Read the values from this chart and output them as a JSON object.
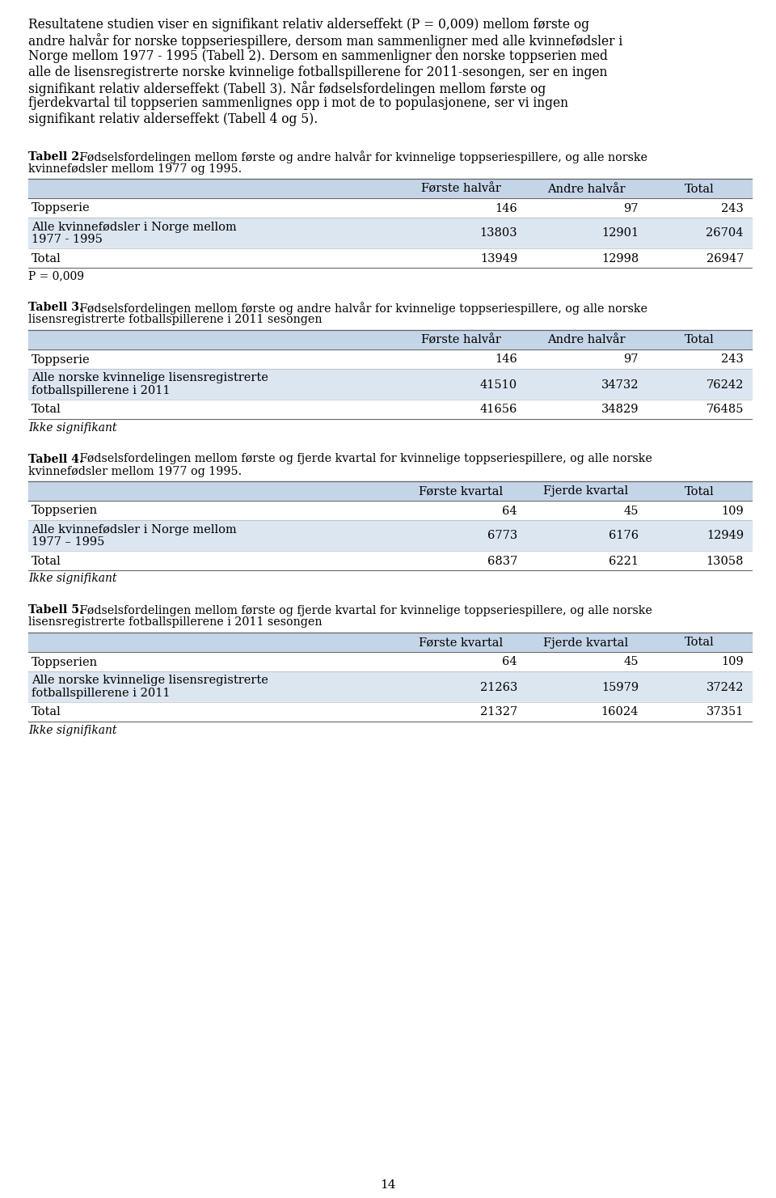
{
  "bg_color": "#ffffff",
  "text_color": "#000000",
  "table_header_bg": "#c5d5e8",
  "table_row_alt_bg": "#dce6f1",
  "table_row_white_bg": "#ffffff",
  "intro_text_lines": [
    "Resultatene studien viser en signifikant relativ alderseffekt (P = 0,009) mellom første og",
    "andre halvår for norske toppseriespillere, dersom man sammenligner med alle kvinnefødsler i",
    "Norge mellom 1977 - 1995 (Tabell 2). Dersom en sammenligner den norske toppserien med",
    "alle de lisensregistrerte norske kvinnelige fotballspillerene for 2011-sesongen, ser en ingen",
    "signifikant relativ alderseffekt (Tabell 3). Når fødselsfordelingen mellom første og",
    "fjerdekvartal til toppserien sammenlignes opp i mot de to populasjonene, ser vi ingen",
    "signifikant relativ alderseffekt (Tabell 4 og 5)."
  ],
  "page_number": "14",
  "tables": [
    {
      "title_bold": "Tabell 2.",
      "title_normal": " Fødselsfordelingen mellom første og andre halvår for kvinnelige toppseriespillere, og alle norske",
      "title_line2": "kvinnefødsler mellom 1977 og 1995.",
      "col_headers": [
        "",
        "Første halvår",
        "Andre halvår",
        "Total"
      ],
      "rows": [
        {
          "label": "Toppserie",
          "label2": "",
          "values": [
            "146",
            "97",
            "243"
          ],
          "shade": false
        },
        {
          "label": "Alle kvinnefødsler i Norge mellom",
          "label2": "1977 - 1995",
          "values": [
            "13803",
            "12901",
            "26704"
          ],
          "shade": true
        },
        {
          "label": "Total",
          "label2": "",
          "values": [
            "13949",
            "12998",
            "26947"
          ],
          "shade": false
        }
      ],
      "footer": "P = 0,009",
      "footer_italic": false
    },
    {
      "title_bold": "Tabell 3.",
      "title_normal": " Fødselsfordelingen mellom første og andre halvår for kvinnelige toppseriespillere, og alle norske",
      "title_line2": "lisensregistrerte fotballspillerene i 2011 sesongen",
      "col_headers": [
        "",
        "Første halvår",
        "Andre halvår",
        "Total"
      ],
      "rows": [
        {
          "label": "Toppserie",
          "label2": "",
          "values": [
            "146",
            "97",
            "243"
          ],
          "shade": false
        },
        {
          "label": "Alle norske kvinnelige lisensregistrerte",
          "label2": "fotballspillerene i 2011",
          "values": [
            "41510",
            "34732",
            "76242"
          ],
          "shade": true
        },
        {
          "label": "Total",
          "label2": "",
          "values": [
            "41656",
            "34829",
            "76485"
          ],
          "shade": false
        }
      ],
      "footer": "Ikke signifikant",
      "footer_italic": true
    },
    {
      "title_bold": "Tabell 4.",
      "title_normal": " Fødselsfordelingen mellom første og fjerde kvartal for kvinnelige toppseriespillere, og alle norske",
      "title_line2": "kvinnefødsler mellom 1977 og 1995.",
      "col_headers": [
        "",
        "Første kvartal",
        "Fjerde kvartal",
        "Total"
      ],
      "rows": [
        {
          "label": "Toppserien",
          "label2": "",
          "values": [
            "64",
            "45",
            "109"
          ],
          "shade": false
        },
        {
          "label": "Alle kvinnefødsler i Norge mellom",
          "label2": "1977 – 1995",
          "values": [
            "6773",
            "6176",
            "12949"
          ],
          "shade": true
        },
        {
          "label": "Total",
          "label2": "",
          "values": [
            "6837",
            "6221",
            "13058"
          ],
          "shade": false
        }
      ],
      "footer": "Ikke signifikant",
      "footer_italic": true
    },
    {
      "title_bold": "Tabell 5.",
      "title_normal": " Fødselsfordelingen mellom første og fjerde kvartal for kvinnelige toppseriespillere, og alle norske",
      "title_line2": "lisensregistrerte fotballspillerene i 2011 sesongen",
      "col_headers": [
        "",
        "Første kvartal",
        "Fjerde kvartal",
        "Total"
      ],
      "rows": [
        {
          "label": "Toppserien",
          "label2": "",
          "values": [
            "64",
            "45",
            "109"
          ],
          "shade": false
        },
        {
          "label": "Alle norske kvinnelige lisensregistrerte",
          "label2": "fotballspillerene i 2011",
          "values": [
            "21263",
            "15979",
            "37242"
          ],
          "shade": true
        },
        {
          "label": "Total",
          "label2": "",
          "values": [
            "21327",
            "16024",
            "37351"
          ],
          "shade": false
        }
      ],
      "footer": "Ikke signifikant",
      "footer_italic": true
    }
  ]
}
